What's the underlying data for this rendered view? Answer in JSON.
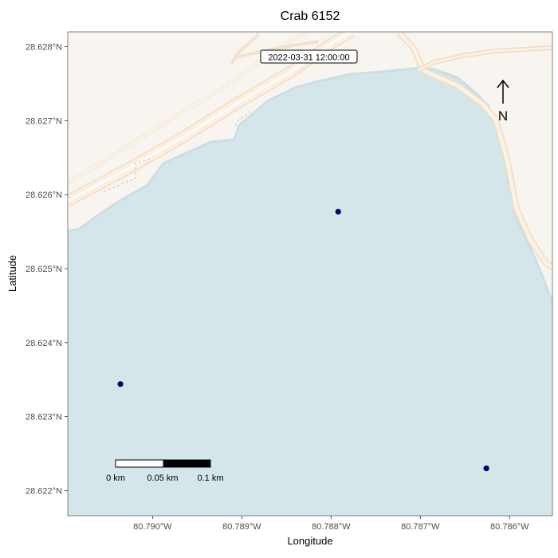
{
  "title": "Crab 6152",
  "timestamp": "2022-03-31 12:00:00",
  "north_label": "N",
  "axes": {
    "xlabel": "Longitude",
    "ylabel": "Latitude",
    "x_ticks": [
      {
        "value": -80.79,
        "label": "80.790°W"
      },
      {
        "value": -80.789,
        "label": "80.789°W"
      },
      {
        "value": -80.788,
        "label": "80.788°W"
      },
      {
        "value": -80.787,
        "label": "80.787°W"
      },
      {
        "value": -80.786,
        "label": "80.786°W"
      }
    ],
    "y_ticks": [
      {
        "value": 28.628,
        "label": "28.628°N"
      },
      {
        "value": 28.627,
        "label": "28.627°N"
      },
      {
        "value": 28.626,
        "label": "28.626°N"
      },
      {
        "value": 28.625,
        "label": "28.625°N"
      },
      {
        "value": 28.624,
        "label": "28.624°N"
      },
      {
        "value": 28.623,
        "label": "28.623°N"
      },
      {
        "value": 28.622,
        "label": "28.622°N"
      }
    ],
    "xlim": [
      -80.79095,
      -80.78552
    ],
    "ylim": [
      28.62166,
      28.6282
    ]
  },
  "chart_data": {
    "type": "scatter",
    "title": "Crab 6152",
    "xlabel": "Longitude",
    "ylabel": "Latitude",
    "points": [
      {
        "lon": -80.78792,
        "lat": 28.62577
      },
      {
        "lon": -80.79036,
        "lat": 28.62344
      },
      {
        "lon": -80.78626,
        "lat": 28.6223
      }
    ],
    "point_color": "#00007f",
    "grid": false
  },
  "scale_bar": {
    "labels": [
      "0 km",
      "0.05 km",
      "0.1 km"
    ]
  },
  "colors": {
    "water": "#d4e6ea",
    "land": "#f8f5f0",
    "road": "#fdeede",
    "road_edge": "#f0dcc4",
    "point": "#00007f"
  }
}
